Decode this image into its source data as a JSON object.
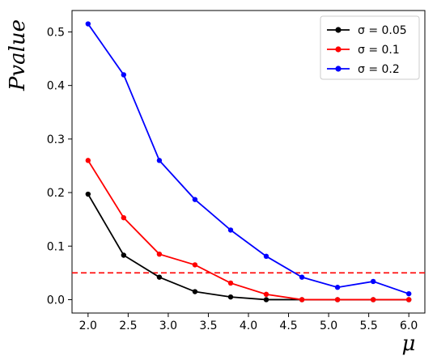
{
  "chart_data": {
    "type": "line",
    "xlabel": "μ",
    "ylabel": "Pvalue",
    "xlim": [
      1.8,
      6.2
    ],
    "ylim": [
      -0.025,
      0.54
    ],
    "xticks": [
      2.0,
      2.5,
      3.0,
      3.5,
      4.0,
      4.5,
      5.0,
      5.5,
      6.0
    ],
    "xtick_labels": [
      "2.0",
      "2.5",
      "3.0",
      "3.5",
      "4.0",
      "4.5",
      "5.0",
      "5.5",
      "6.0"
    ],
    "yticks": [
      0.0,
      0.1,
      0.2,
      0.3,
      0.4,
      0.5
    ],
    "ytick_labels": [
      "0.0",
      "0.1",
      "0.2",
      "0.3",
      "0.4",
      "0.5"
    ],
    "grid": false,
    "legend_position": "top-right",
    "x": [
      2.0,
      2.444,
      2.889,
      3.333,
      3.778,
      4.222,
      4.667,
      5.111,
      5.556,
      6.0
    ],
    "series": [
      {
        "name": "σ = 0.05",
        "color": "#000000",
        "values": [
          0.197,
          0.083,
          0.042,
          0.015,
          0.005,
          0.0,
          0.0,
          0.0,
          0.0,
          0.0
        ]
      },
      {
        "name": "σ = 0.1",
        "color": "#ff0000",
        "values": [
          0.26,
          0.153,
          0.085,
          0.065,
          0.031,
          0.01,
          0.0,
          0.0,
          0.0,
          0.0
        ]
      },
      {
        "name": "σ = 0.2",
        "color": "#0000ff",
        "values": [
          0.515,
          0.42,
          0.26,
          0.187,
          0.13,
          0.081,
          0.042,
          0.023,
          0.034,
          0.011
        ]
      }
    ],
    "reference_line": {
      "y": 0.05,
      "color": "#ff0000",
      "style": "dashed"
    }
  }
}
